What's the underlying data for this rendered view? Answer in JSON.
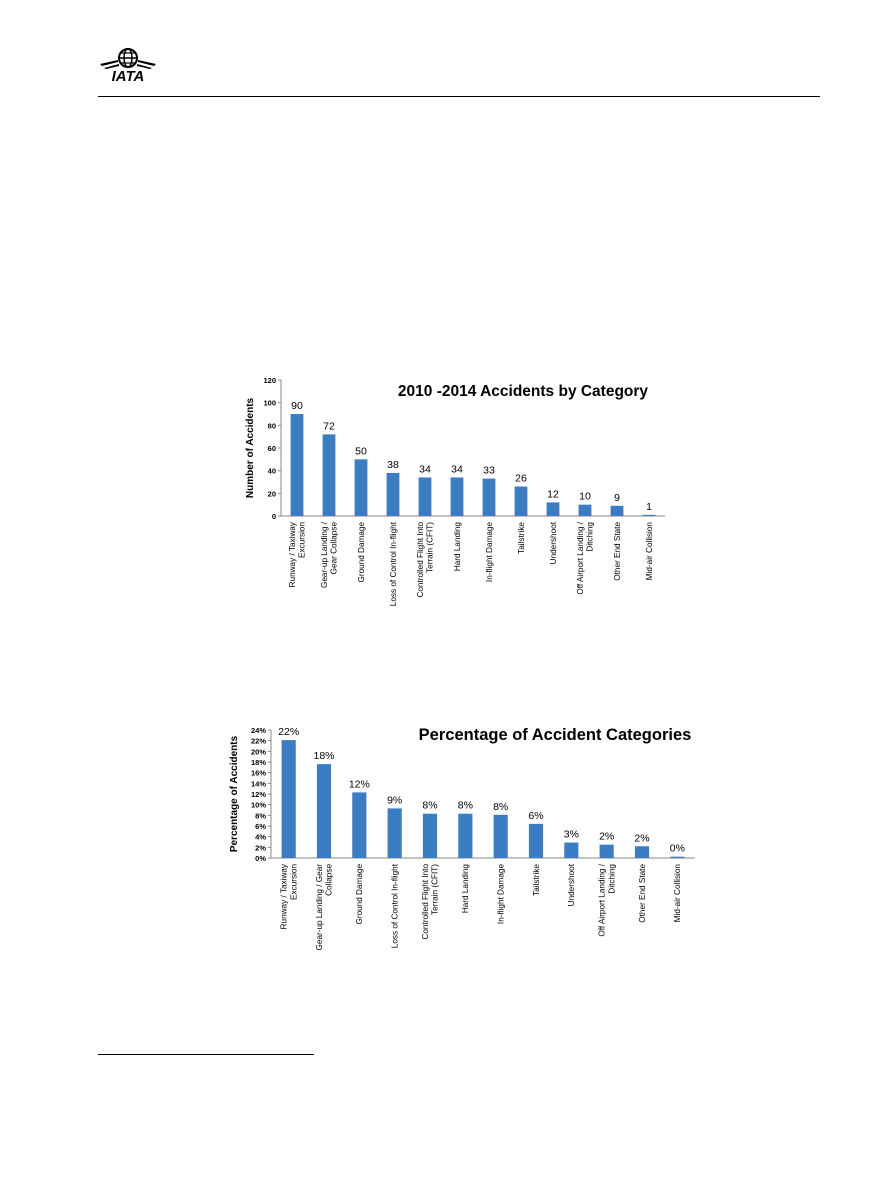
{
  "header": {
    "logo_text": "IATA"
  },
  "chart_data": [
    {
      "type": "bar",
      "title": "2010 -2014 Accidents by Category",
      "xlabel": "",
      "ylabel": "Number of Accidents",
      "ylim": [
        0,
        120
      ],
      "yticks": [
        "0",
        "20",
        "40",
        "60",
        "80",
        "100",
        "120"
      ],
      "grid": false,
      "color": "#3b7dc4",
      "categories": [
        [
          "Runway / Taxiway",
          "Excursion"
        ],
        [
          "Gear-up Landing /",
          "Gear Collapse"
        ],
        [
          "Ground Damage"
        ],
        [
          "Loss of Control In-flight"
        ],
        [
          "Controlled Flight Into",
          "Terrain (CFIT)"
        ],
        [
          "Hard Landing"
        ],
        [
          "In-flight Damage"
        ],
        [
          "Tailstrike"
        ],
        [
          "Undershoot"
        ],
        [
          "Off Airport Landing /",
          "Ditching"
        ],
        [
          "Other End State"
        ],
        [
          "Mid-air Collision"
        ]
      ],
      "values": [
        90,
        72,
        50,
        38,
        34,
        34,
        33,
        26,
        12,
        10,
        9,
        1
      ],
      "data_labels": [
        "90",
        "72",
        "50",
        "38",
        "34",
        "34",
        "33",
        "26",
        "12",
        "10",
        "9",
        "1"
      ]
    },
    {
      "type": "bar",
      "title": "Percentage of Accident Categories",
      "xlabel": "",
      "ylabel": "Percentage of Accidents",
      "ylim": [
        0,
        24
      ],
      "yticks": [
        "0%",
        "2%",
        "4%",
        "6%",
        "8%",
        "10%",
        "12%",
        "14%",
        "16%",
        "18%",
        "20%",
        "22%",
        "24%"
      ],
      "grid": false,
      "color": "#3b7dc4",
      "categories": [
        [
          "Runway / Taxiway",
          "Excursion"
        ],
        [
          "Gear-up Landing / Gear",
          "Collapse"
        ],
        [
          "Ground Damage"
        ],
        [
          "Loss of Control In-flight"
        ],
        [
          "Controlled Flight Into",
          "Terrain (CFIT)"
        ],
        [
          "Hard Landing"
        ],
        [
          "In-flight Damage"
        ],
        [
          "Tailstrike"
        ],
        [
          "Undershoot"
        ],
        [
          "Off Airport Landing /",
          "Ditching"
        ],
        [
          "Other End State"
        ],
        [
          "Mid-air Collision"
        ]
      ],
      "values": [
        22.1,
        17.6,
        12.3,
        9.3,
        8.3,
        8.3,
        8.1,
        6.4,
        2.9,
        2.5,
        2.2,
        0.25
      ],
      "data_labels": [
        "22%",
        "18%",
        "12%",
        "9%",
        "8%",
        "8%",
        "8%",
        "6%",
        "3%",
        "2%",
        "2%",
        "0%"
      ]
    }
  ]
}
